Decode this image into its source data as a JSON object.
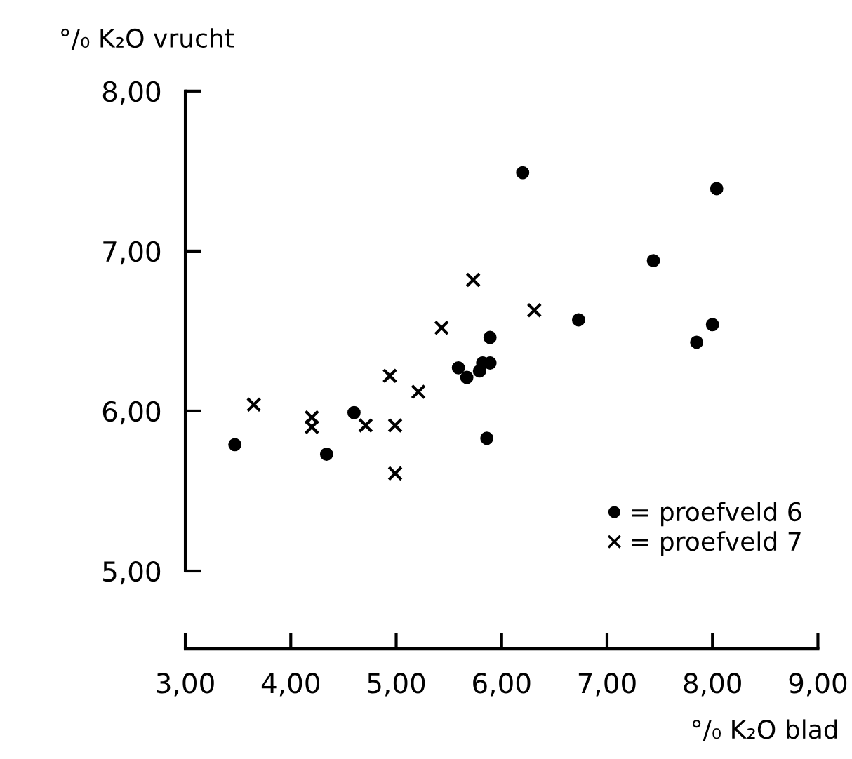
{
  "chart_data": {
    "type": "scatter",
    "xlabel": "°/₀ K₂O blad",
    "ylabel": "°/₀ K₂O vrucht",
    "series": [
      {
        "name": "= proefveld 6",
        "marker": "circle",
        "color": "#000000",
        "x": [
          3.47,
          4.34,
          4.6,
          6.2,
          5.59,
          5.67,
          5.79,
          5.82,
          5.89,
          5.89,
          5.86,
          8.04,
          7.44,
          6.73,
          8.0,
          7.85
        ],
        "values": [
          5.79,
          5.73,
          5.99,
          7.49,
          6.27,
          6.21,
          6.25,
          6.3,
          6.3,
          6.46,
          5.83,
          7.39,
          6.94,
          6.57,
          6.54,
          6.43
        ]
      },
      {
        "name": "= proefveld 7",
        "marker": "cross",
        "color": "#000000",
        "x": [
          3.65,
          4.2,
          4.2,
          4.71,
          4.94,
          4.99,
          4.99,
          5.21,
          5.43,
          5.73,
          6.31
        ],
        "values": [
          6.04,
          5.96,
          5.9,
          5.91,
          6.22,
          5.91,
          5.61,
          6.12,
          6.52,
          6.82,
          6.63
        ]
      }
    ],
    "xlim": [
      3,
      9
    ],
    "ylim": [
      5,
      8
    ],
    "xticks": [
      {
        "value": 3,
        "label": "3,00"
      },
      {
        "value": 4,
        "label": "4,00"
      },
      {
        "value": 5,
        "label": "5,00"
      },
      {
        "value": 6,
        "label": "6,00"
      },
      {
        "value": 7,
        "label": "7,00"
      },
      {
        "value": 8,
        "label": "8,00"
      },
      {
        "value": 9,
        "label": "9,00"
      }
    ],
    "yticks": [
      {
        "value": 5,
        "label": "5,00"
      },
      {
        "value": 6,
        "label": "6,00"
      },
      {
        "value": 7,
        "label": "7,00"
      },
      {
        "value": 8,
        "label": "8,00"
      }
    ],
    "grid": false,
    "legend": "bottom right"
  }
}
